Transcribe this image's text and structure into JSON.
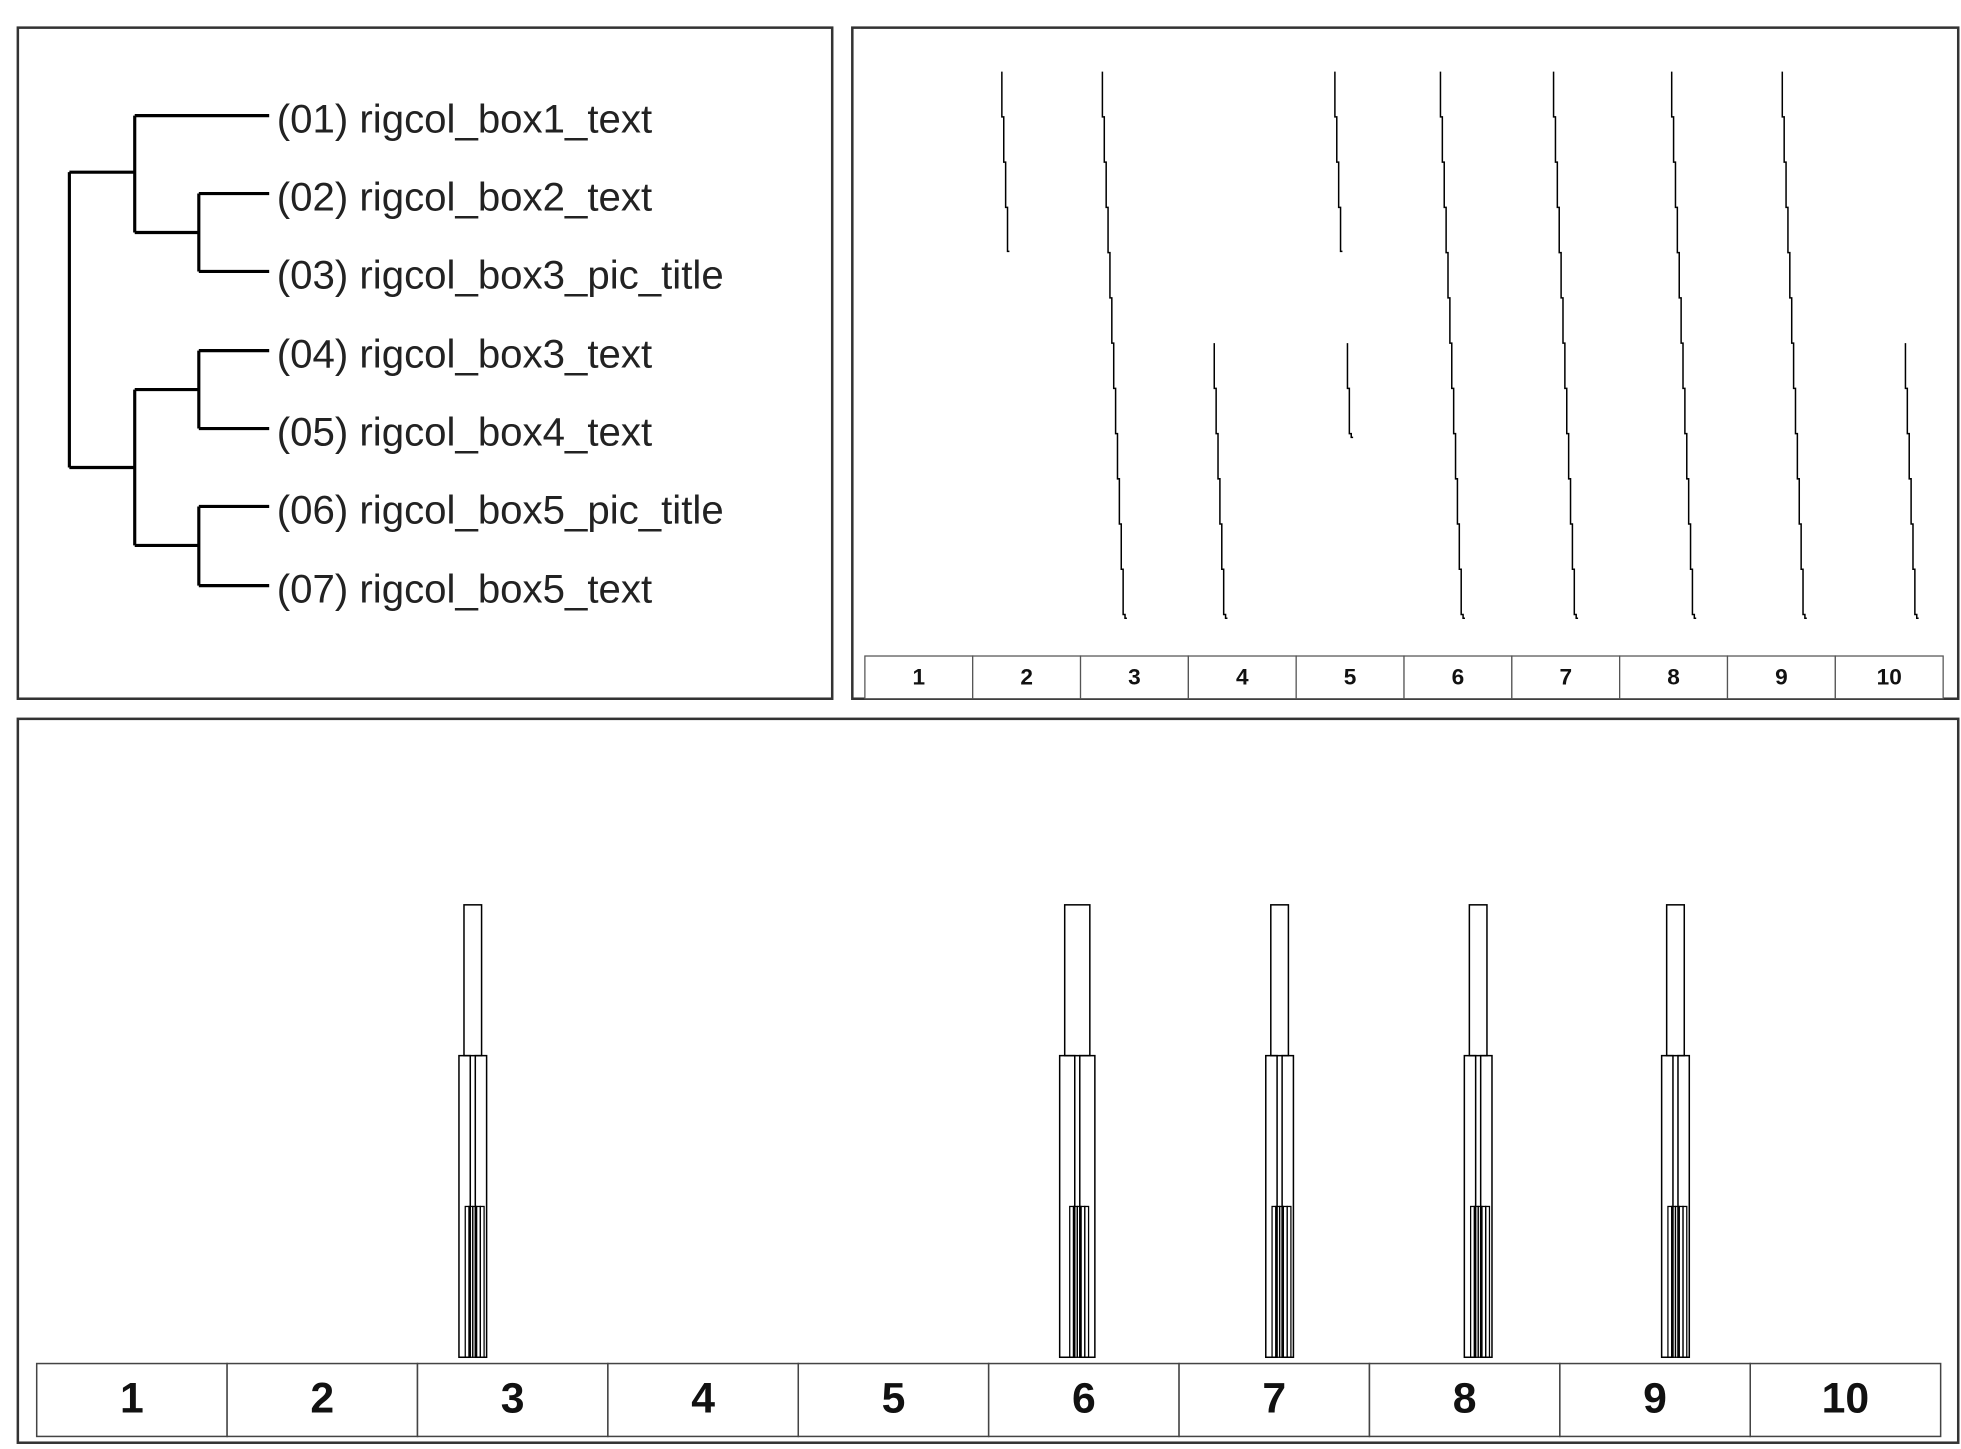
{
  "dendrogram": {
    "labels": [
      "(01) rigcol_box1_text",
      "(02) rigcol_box2_text",
      "(03) rigcol_box3_pic_title",
      "(04) rigcol_box3_text",
      "(05) rigcol_box4_text",
      "(06) rigcol_box5_pic_title",
      "(07) rigcol_box5_text"
    ]
  },
  "top_panel": {
    "columns": [
      "1",
      "2",
      "3",
      "4",
      "5",
      "6",
      "7",
      "8",
      "9",
      "10"
    ]
  },
  "bottom_panel": {
    "columns": [
      "1",
      "2",
      "3",
      "4",
      "5",
      "6",
      "7",
      "8",
      "9",
      "10"
    ]
  }
}
